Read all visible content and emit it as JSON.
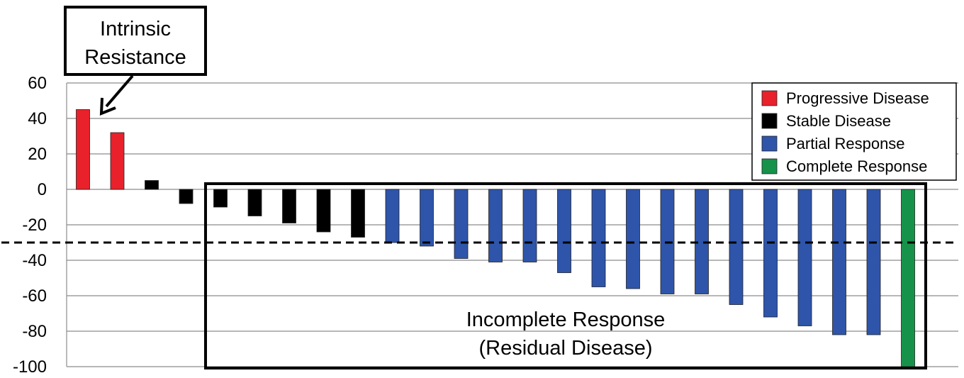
{
  "chart_data": {
    "type": "bar",
    "title": "",
    "xlabel": "",
    "ylabel": "",
    "ylim": [
      -100,
      60
    ],
    "yticks": [
      60,
      40,
      20,
      0,
      -20,
      -40,
      -60,
      -80,
      -100
    ],
    "grid": true,
    "legend_position": "top-right",
    "threshold_line": -30,
    "values": [
      45,
      32,
      5,
      -8,
      -10,
      -15,
      -19,
      -24,
      -27,
      -30,
      -32,
      -39,
      -41,
      -41,
      -47,
      -55,
      -56,
      -59,
      -59,
      -65,
      -72,
      -77,
      -82,
      -82,
      -100
    ],
    "categories_by_bar": [
      "PD",
      "PD",
      "SD",
      "SD",
      "SD",
      "SD",
      "SD",
      "SD",
      "SD",
      "PR",
      "PR",
      "PR",
      "PR",
      "PR",
      "PR",
      "PR",
      "PR",
      "PR",
      "PR",
      "PR",
      "PR",
      "PR",
      "PR",
      "PR",
      "CR"
    ],
    "series": [
      {
        "key": "PD",
        "name": "Progressive Disease",
        "color": "#e8212b"
      },
      {
        "key": "SD",
        "name": "Stable Disease",
        "color": "#000000"
      },
      {
        "key": "PR",
        "name": "Partial Response",
        "color": "#2e55aa"
      },
      {
        "key": "CR",
        "name": "Complete Response",
        "color": "#17924a"
      }
    ],
    "annotations": {
      "intrinsic_resistance": [
        "Intrinsic",
        "Resistance"
      ],
      "incomplete_response": [
        "Incomplete Response",
        "(Residual Disease)"
      ]
    }
  }
}
